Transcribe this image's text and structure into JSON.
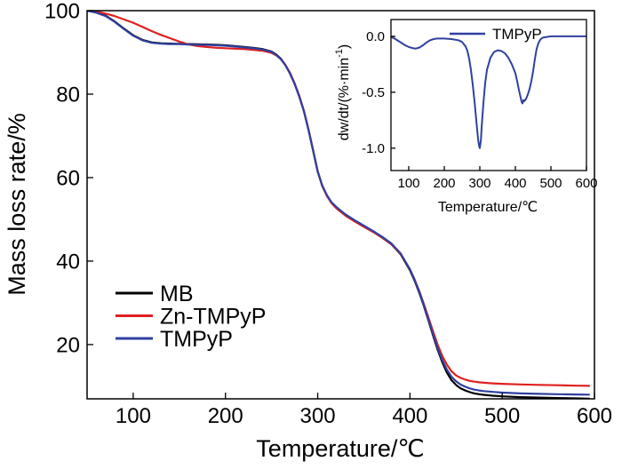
{
  "chart_data": [
    {
      "type": "line",
      "title": "",
      "xlabel": "Temperature/℃",
      "ylabel": "Mass loss rate/%",
      "xlim": [
        50,
        600
      ],
      "ylim": [
        7,
        100
      ],
      "xticks": [
        "100",
        "200",
        "300",
        "400",
        "500",
        "600"
      ],
      "xtick_values": [
        100,
        200,
        300,
        400,
        500,
        600
      ],
      "yticks": [
        "20",
        "40",
        "60",
        "80",
        "100"
      ],
      "ytick_values": [
        20,
        40,
        60,
        80,
        100
      ],
      "grid": false,
      "legend_position": "bottom-left",
      "series": [
        {
          "name": "MB",
          "color": "#000000",
          "x": [
            50,
            60,
            70,
            80,
            90,
            100,
            110,
            120,
            130,
            140,
            150,
            160,
            170,
            180,
            190,
            200,
            210,
            220,
            230,
            240,
            250,
            255,
            260,
            265,
            270,
            275,
            280,
            285,
            290,
            295,
            300,
            305,
            310,
            315,
            320,
            330,
            340,
            350,
            360,
            370,
            380,
            390,
            400,
            405,
            410,
            415,
            420,
            425,
            430,
            435,
            440,
            445,
            450,
            455,
            460,
            465,
            470,
            475,
            480,
            490,
            500,
            520,
            540,
            560,
            580,
            595
          ],
          "y": [
            100,
            99.6,
            98.8,
            97.4,
            95.7,
            94.1,
            93,
            92.4,
            92.2,
            92.1,
            92.05,
            92,
            91.95,
            91.9,
            91.8,
            91.7,
            91.5,
            91.3,
            91.1,
            90.8,
            90.2,
            89.5,
            88.5,
            87,
            85,
            82.5,
            79.5,
            76,
            71.5,
            66.5,
            61.5,
            58,
            55.7,
            54,
            52.8,
            51,
            49.6,
            48.3,
            47,
            45.6,
            44,
            41.6,
            37.8,
            35.3,
            32.5,
            29.3,
            25.8,
            22.2,
            18.8,
            15.8,
            13.3,
            11.5,
            10.3,
            9.5,
            9,
            8.6,
            8.3,
            8.1,
            7.95,
            7.75,
            7.6,
            7.4,
            7.3,
            7.2,
            7.1,
            7.05
          ]
        },
        {
          "name": "Zn-TMPyP",
          "color": "#e02020",
          "x": [
            50,
            60,
            70,
            80,
            90,
            100,
            110,
            120,
            130,
            140,
            150,
            160,
            170,
            180,
            190,
            200,
            210,
            220,
            230,
            240,
            250,
            255,
            260,
            265,
            270,
            275,
            280,
            285,
            290,
            295,
            300,
            305,
            310,
            315,
            320,
            330,
            340,
            350,
            360,
            370,
            380,
            390,
            400,
            405,
            410,
            415,
            420,
            425,
            430,
            435,
            440,
            445,
            450,
            455,
            460,
            465,
            470,
            475,
            480,
            490,
            500,
            520,
            540,
            560,
            580,
            595
          ],
          "y": [
            100,
            99.8,
            99.3,
            98.7,
            97.9,
            97.1,
            96.1,
            95.1,
            94.2,
            93.4,
            92.6,
            91.9,
            91.5,
            91.3,
            91.1,
            91,
            90.9,
            90.8,
            90.6,
            90.4,
            89.9,
            89.3,
            88.4,
            87,
            85.1,
            82.6,
            79.6,
            76,
            71.5,
            66.5,
            61.5,
            58,
            55.6,
            53.9,
            52.7,
            50.9,
            49.5,
            48.2,
            47,
            45.6,
            44,
            41.7,
            38,
            35.6,
            32.9,
            29.8,
            26.5,
            23.2,
            20,
            17.3,
            15.2,
            13.6,
            12.6,
            12,
            11.6,
            11.3,
            11.1,
            10.95,
            10.85,
            10.7,
            10.6,
            10.45,
            10.35,
            10.25,
            10.15,
            10.1
          ]
        },
        {
          "name": "TMPyP",
          "color": "#3040a0",
          "x": [
            50,
            60,
            70,
            80,
            90,
            100,
            110,
            120,
            130,
            140,
            150,
            160,
            170,
            180,
            190,
            200,
            210,
            220,
            230,
            240,
            250,
            255,
            260,
            265,
            270,
            275,
            280,
            285,
            290,
            295,
            300,
            305,
            310,
            315,
            320,
            330,
            340,
            350,
            360,
            370,
            380,
            390,
            400,
            405,
            410,
            415,
            420,
            425,
            430,
            435,
            440,
            445,
            450,
            455,
            460,
            465,
            470,
            475,
            480,
            490,
            500,
            520,
            540,
            560,
            580,
            595
          ],
          "y": [
            100,
            99.5,
            98.7,
            97.3,
            95.6,
            94,
            92.9,
            92.3,
            92.1,
            92,
            92,
            91.9,
            91.85,
            91.8,
            91.7,
            91.6,
            91.4,
            91.2,
            91,
            90.7,
            90.1,
            89.4,
            88.4,
            86.9,
            84.9,
            82.4,
            79.4,
            75.9,
            71.4,
            66.4,
            61.5,
            58.1,
            55.8,
            54.1,
            53,
            51.2,
            49.8,
            48.5,
            47.2,
            45.8,
            44.2,
            41.8,
            38,
            35.5,
            32.7,
            29.5,
            26,
            22.5,
            19.2,
            16.3,
            14,
            12.3,
            11.2,
            10.4,
            9.9,
            9.5,
            9.2,
            9,
            8.85,
            8.65,
            8.5,
            8.3,
            8.2,
            8.1,
            8.05,
            8
          ]
        }
      ]
    },
    {
      "type": "line",
      "title": "",
      "xlabel": "Temperature/℃",
      "ylabel_parts": [
        "dw/dt/(%·min",
        "-1",
        ")"
      ],
      "xlim": [
        50,
        600
      ],
      "ylim": [
        -1.2,
        0.15
      ],
      "xticks": [
        "100",
        "200",
        "300",
        "400",
        "500",
        "600"
      ],
      "xtick_values": [
        100,
        200,
        300,
        400,
        500,
        600
      ],
      "yticks": [
        "0.0",
        "-0.5",
        "-1.0"
      ],
      "ytick_values": [
        0,
        -0.5,
        -1
      ],
      "grid": false,
      "legend_position": "top-right",
      "series": [
        {
          "name": "TMPyP",
          "color": "#3040a0",
          "x": [
            50,
            60,
            70,
            80,
            90,
            100,
            110,
            120,
            130,
            140,
            150,
            160,
            170,
            180,
            200,
            220,
            240,
            250,
            260,
            265,
            270,
            275,
            280,
            285,
            290,
            295,
            298,
            300,
            303,
            305,
            310,
            315,
            320,
            330,
            340,
            350,
            360,
            370,
            380,
            390,
            400,
            405,
            410,
            415,
            418,
            420,
            423,
            425,
            430,
            435,
            440,
            445,
            450,
            455,
            460,
            465,
            470,
            475,
            480,
            490,
            500,
            520,
            540,
            560,
            580,
            600
          ],
          "y": [
            -0.005,
            -0.02,
            -0.04,
            -0.06,
            -0.08,
            -0.095,
            -0.105,
            -0.11,
            -0.1,
            -0.08,
            -0.055,
            -0.035,
            -0.025,
            -0.02,
            -0.02,
            -0.025,
            -0.035,
            -0.05,
            -0.09,
            -0.13,
            -0.2,
            -0.3,
            -0.43,
            -0.58,
            -0.75,
            -0.92,
            -0.98,
            -1.0,
            -0.93,
            -0.82,
            -0.6,
            -0.42,
            -0.3,
            -0.19,
            -0.14,
            -0.125,
            -0.13,
            -0.15,
            -0.19,
            -0.25,
            -0.33,
            -0.4,
            -0.48,
            -0.55,
            -0.59,
            -0.6,
            -0.57,
            -0.58,
            -0.56,
            -0.52,
            -0.47,
            -0.4,
            -0.31,
            -0.2,
            -0.11,
            -0.06,
            -0.03,
            -0.015,
            -0.01,
            -0.005,
            0,
            0,
            0,
            0,
            0,
            0
          ]
        }
      ]
    }
  ]
}
